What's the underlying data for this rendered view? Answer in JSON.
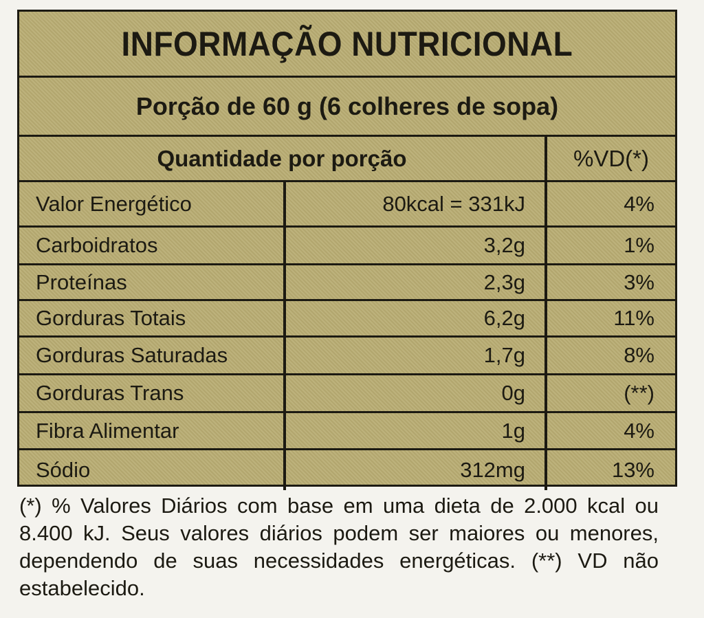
{
  "header": {
    "title": "INFORMAÇÃO NUTRICIONAL",
    "serving": "Porção de 60 g (6 colheres de sopa)"
  },
  "table": {
    "columns": [
      "Quantidade por porção",
      "%VD(*)"
    ],
    "rows": [
      [
        "Valor Energético",
        "80kcal = 331kJ",
        "4%"
      ],
      [
        "Carboidratos",
        "3,2g",
        "1%"
      ],
      [
        "Proteínas",
        "2,3g",
        "3%"
      ],
      [
        "Gorduras Totais",
        "6,2g",
        "11%"
      ],
      [
        "Gorduras Saturadas",
        "1,7g",
        "8%"
      ],
      [
        "Gorduras Trans",
        "0g",
        "(**)"
      ],
      [
        "Fibra Alimentar",
        "1g",
        "4%"
      ],
      [
        "Sódio",
        "312mg",
        "13%"
      ]
    ]
  },
  "footnote": "(*) % Valores Diários com base em uma dieta de 2.000 kcal ou 8.400 kJ. Seus valores diários podem ser maiores ou menores, dependendo de suas necessidades energéticas. (**) VD não estabelecido."
}
